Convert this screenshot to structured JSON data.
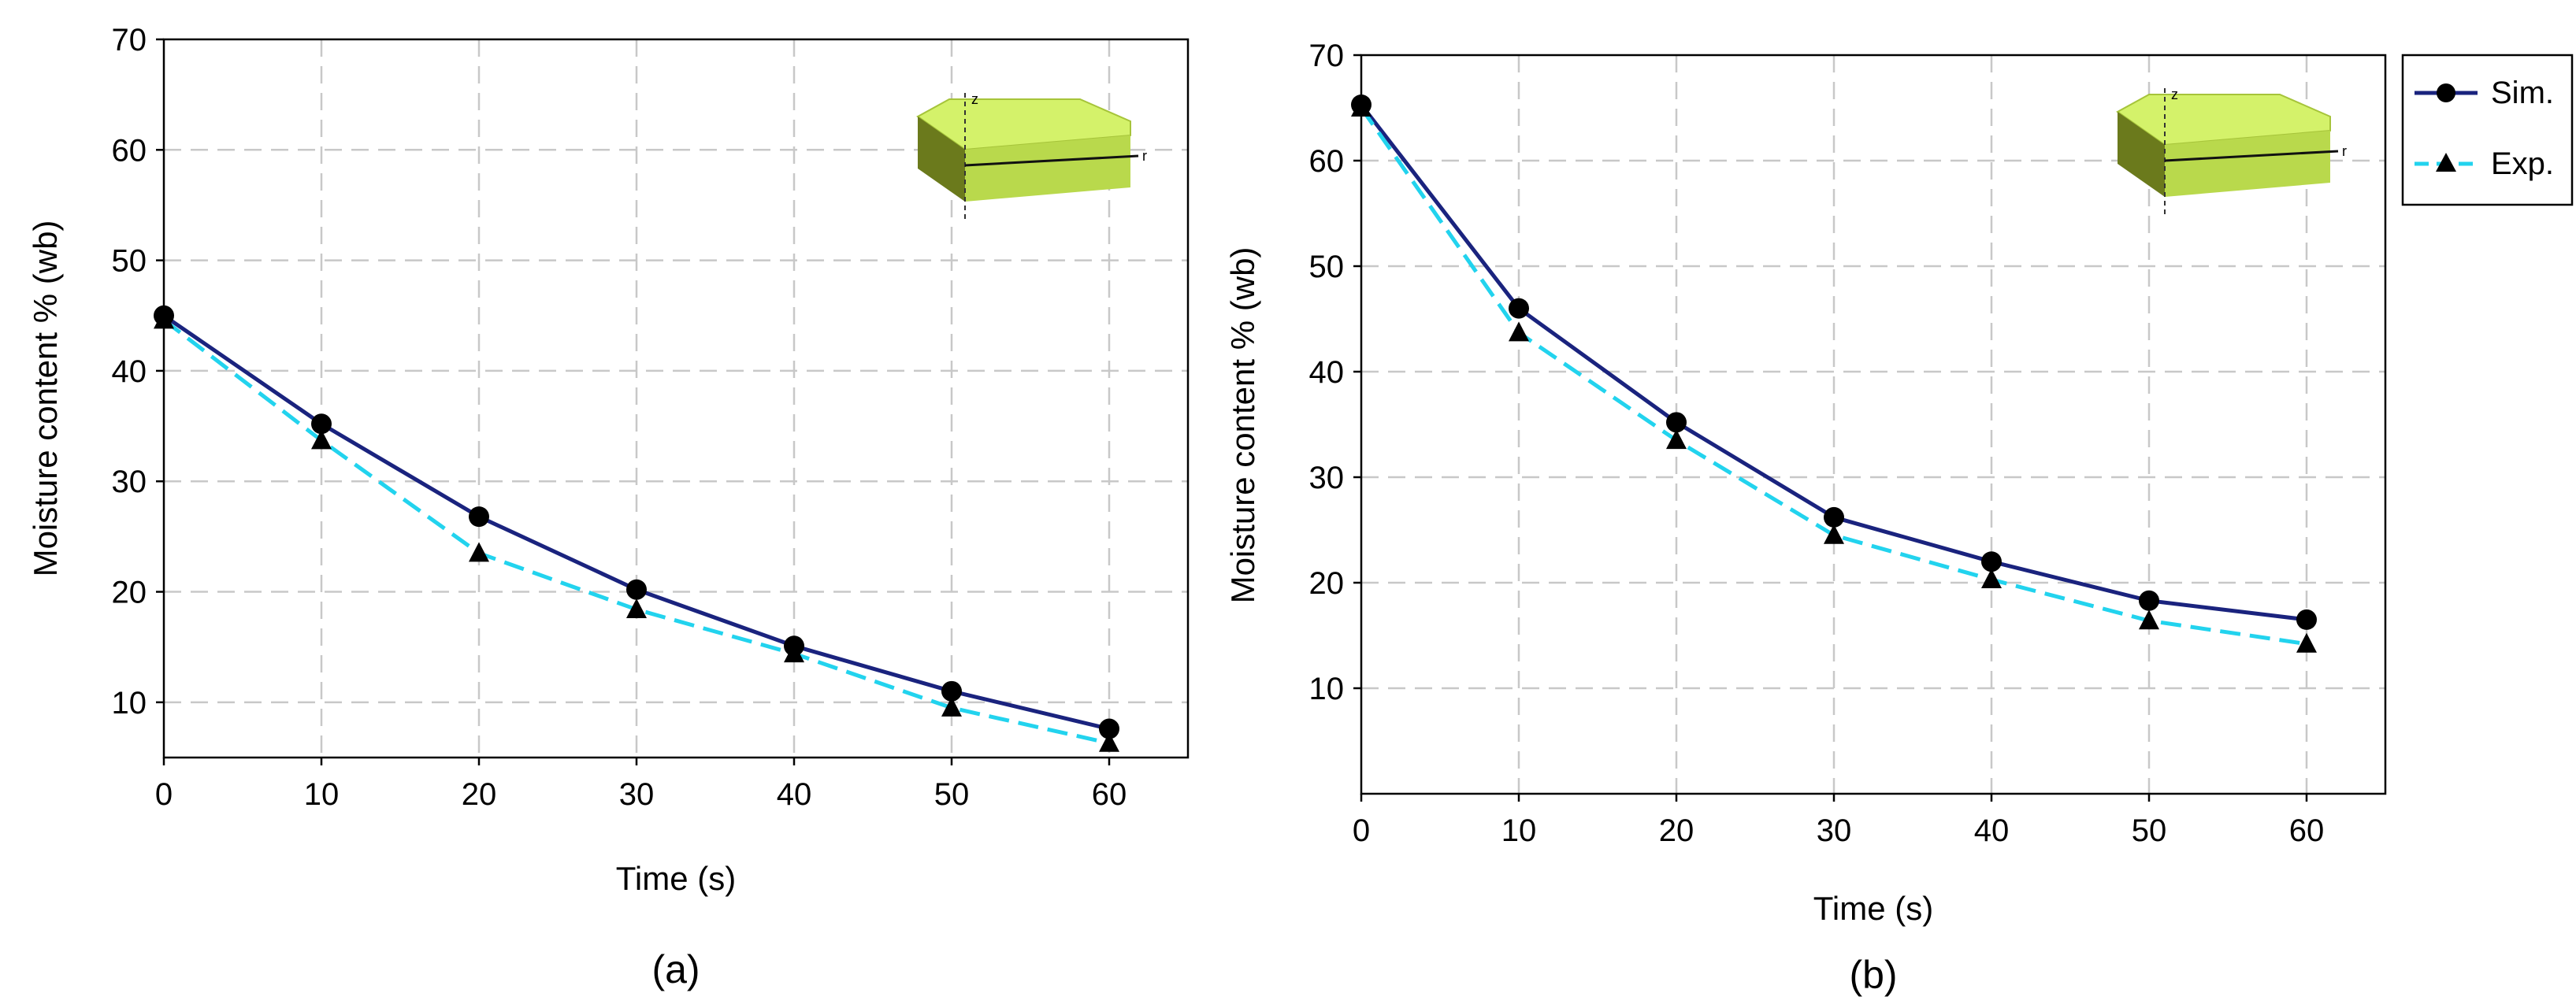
{
  "chart_data": [
    {
      "panel_label": "(a)",
      "type": "line",
      "xlabel": "Time (s)",
      "ylabel": "Moisture content % (wb)",
      "xlim": [
        0,
        65
      ],
      "ylim": [
        5,
        70
      ],
      "xticks": [
        0,
        10,
        20,
        30,
        40,
        50,
        60
      ],
      "yticks": [
        10,
        20,
        30,
        40,
        50,
        60,
        70
      ],
      "grid": true,
      "legend": null,
      "x": [
        0,
        10,
        20,
        30,
        40,
        50,
        60
      ],
      "series": [
        {
          "name": "Sim.",
          "color": "#1a237e",
          "style": "solid",
          "marker": "circle",
          "values": [
            45.0,
            35.2,
            26.8,
            20.2,
            15.1,
            11.0,
            7.6
          ]
        },
        {
          "name": "Exp.",
          "color": "#22d3ee",
          "style": "dashed",
          "marker": "triangle",
          "values": [
            44.6,
            33.7,
            23.5,
            18.4,
            14.4,
            9.5,
            6.3
          ]
        }
      ],
      "inset": "cylinder-sector-3d-icon"
    },
    {
      "panel_label": "(b)",
      "type": "line",
      "xlabel": "Time (s)",
      "ylabel": "Moisture content % (wb)",
      "xlim": [
        0,
        65
      ],
      "ylim": [
        0,
        70
      ],
      "xticks": [
        0,
        10,
        20,
        30,
        40,
        50,
        60
      ],
      "yticks": [
        10,
        20,
        30,
        40,
        50,
        60,
        70
      ],
      "grid": true,
      "legend": "outside-top-right",
      "x": [
        0,
        10,
        20,
        30,
        40,
        50,
        60
      ],
      "series": [
        {
          "name": "Sim.",
          "color": "#1a237e",
          "style": "solid",
          "marker": "circle",
          "values": [
            65.3,
            46.0,
            35.2,
            26.2,
            22.0,
            18.3,
            16.5
          ]
        },
        {
          "name": "Exp.",
          "color": "#22d3ee",
          "style": "dashed",
          "marker": "triangle",
          "values": [
            65.0,
            43.7,
            33.5,
            24.5,
            20.3,
            16.4,
            14.2
          ]
        }
      ],
      "inset": "cylinder-sector-3d-icon"
    }
  ],
  "legend": {
    "sim_label": "Sim.",
    "exp_label": "Exp."
  }
}
